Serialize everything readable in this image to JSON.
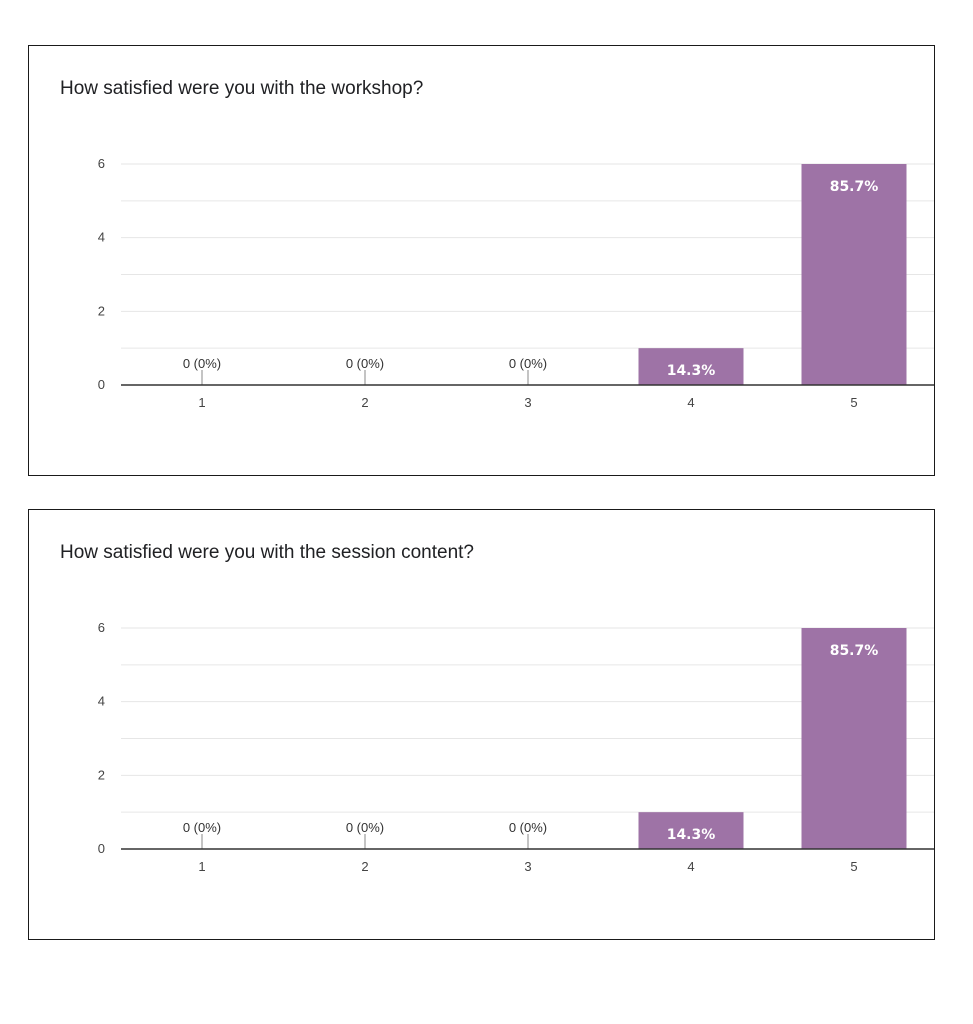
{
  "colors": {
    "bar": "#9e73a6",
    "gridline": "#e6e6e6",
    "axis": "#333333",
    "frame": "#1a1a1a"
  },
  "chart_data": [
    {
      "type": "bar",
      "title": "How satisfied were you with the workshop?",
      "categories": [
        "1",
        "2",
        "3",
        "4",
        "5"
      ],
      "values": [
        0,
        0,
        0,
        1,
        6
      ],
      "labels": [
        "0 (0%)",
        "0 (0%)",
        "0 (0%)",
        "14.3%",
        "85.7%"
      ],
      "yticks": [
        "0",
        "2",
        "4",
        "6"
      ],
      "ylim": [
        0,
        6
      ],
      "grid": true,
      "xlabel": "",
      "ylabel": ""
    },
    {
      "type": "bar",
      "title": "How satisfied were you with the session content?",
      "categories": [
        "1",
        "2",
        "3",
        "4",
        "5"
      ],
      "values": [
        0,
        0,
        0,
        1,
        6
      ],
      "labels": [
        "0 (0%)",
        "0 (0%)",
        "0 (0%)",
        "14.3%",
        "85.7%"
      ],
      "yticks": [
        "0",
        "2",
        "4",
        "6"
      ],
      "ylim": [
        0,
        6
      ],
      "grid": true,
      "xlabel": "",
      "ylabel": ""
    }
  ]
}
